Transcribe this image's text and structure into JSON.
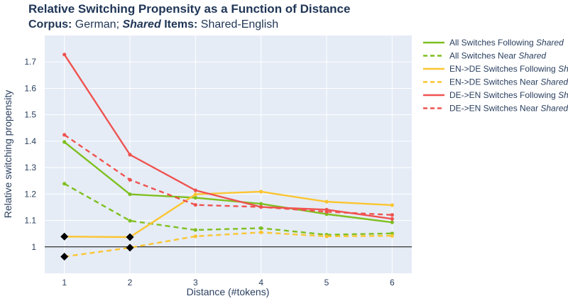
{
  "chart_data": {
    "type": "line",
    "title": "Relative Switching Propensity as a Function of Distance",
    "subtitle": {
      "corpus_label": "Corpus:",
      "corpus_value": "German;",
      "shared_word": "Shared",
      "items_label": "Items:",
      "items_value": "Shared-English"
    },
    "xlabel": "Distance (#tokens)",
    "ylabel": "Relative switching propensity",
    "x": [
      1,
      2,
      3,
      4,
      5,
      6
    ],
    "xlim": [
      0.7,
      6.3
    ],
    "ylim": [
      0.9,
      1.8
    ],
    "xticks": [
      "1",
      "2",
      "3",
      "4",
      "5",
      "6"
    ],
    "yticks": [
      "1",
      "1.1",
      "1.2",
      "1.3",
      "1.4",
      "1.5",
      "1.6",
      "1.7"
    ],
    "reference_line_y": 1,
    "grid": true,
    "legend_position": "right",
    "series": [
      {
        "name_plain": "All Switches Following ",
        "name_italic": "Shared",
        "color": "#7fbf1f",
        "dash": "solid",
        "values": [
          1.397,
          1.199,
          1.186,
          1.163,
          1.124,
          1.093
        ]
      },
      {
        "name_plain": "All Switches Near ",
        "name_italic": "Shared",
        "color": "#7fbf1f",
        "dash": "dashed",
        "values": [
          1.239,
          1.099,
          1.064,
          1.071,
          1.046,
          1.051
        ]
      },
      {
        "name_plain": "EN->DE Switches Following ",
        "name_italic": "Shared",
        "color": "#fbc531",
        "dash": "solid",
        "values": [
          1.039,
          1.037,
          1.199,
          1.209,
          1.171,
          1.158
        ]
      },
      {
        "name_plain": "EN->DE Switches Near ",
        "name_italic": "Shared",
        "color": "#fbc531",
        "dash": "dashed",
        "values": [
          0.963,
          0.997,
          1.04,
          1.055,
          1.04,
          1.042
        ]
      },
      {
        "name_plain": "DE->EN Switches Following ",
        "name_italic": "Shared",
        "color": "#ef5350",
        "dash": "solid",
        "values": [
          1.728,
          1.349,
          1.214,
          1.151,
          1.141,
          1.106
        ]
      },
      {
        "name_plain": "DE->EN Switches Near ",
        "name_italic": "Shared",
        "color": "#ef5350",
        "dash": "dashed",
        "values": [
          1.424,
          1.254,
          1.159,
          1.151,
          1.133,
          1.121
        ]
      }
    ],
    "markers": [
      {
        "x": 1,
        "y": 1.039
      },
      {
        "x": 2,
        "y": 1.037
      },
      {
        "x": 1,
        "y": 0.963
      },
      {
        "x": 2,
        "y": 0.997
      }
    ]
  }
}
